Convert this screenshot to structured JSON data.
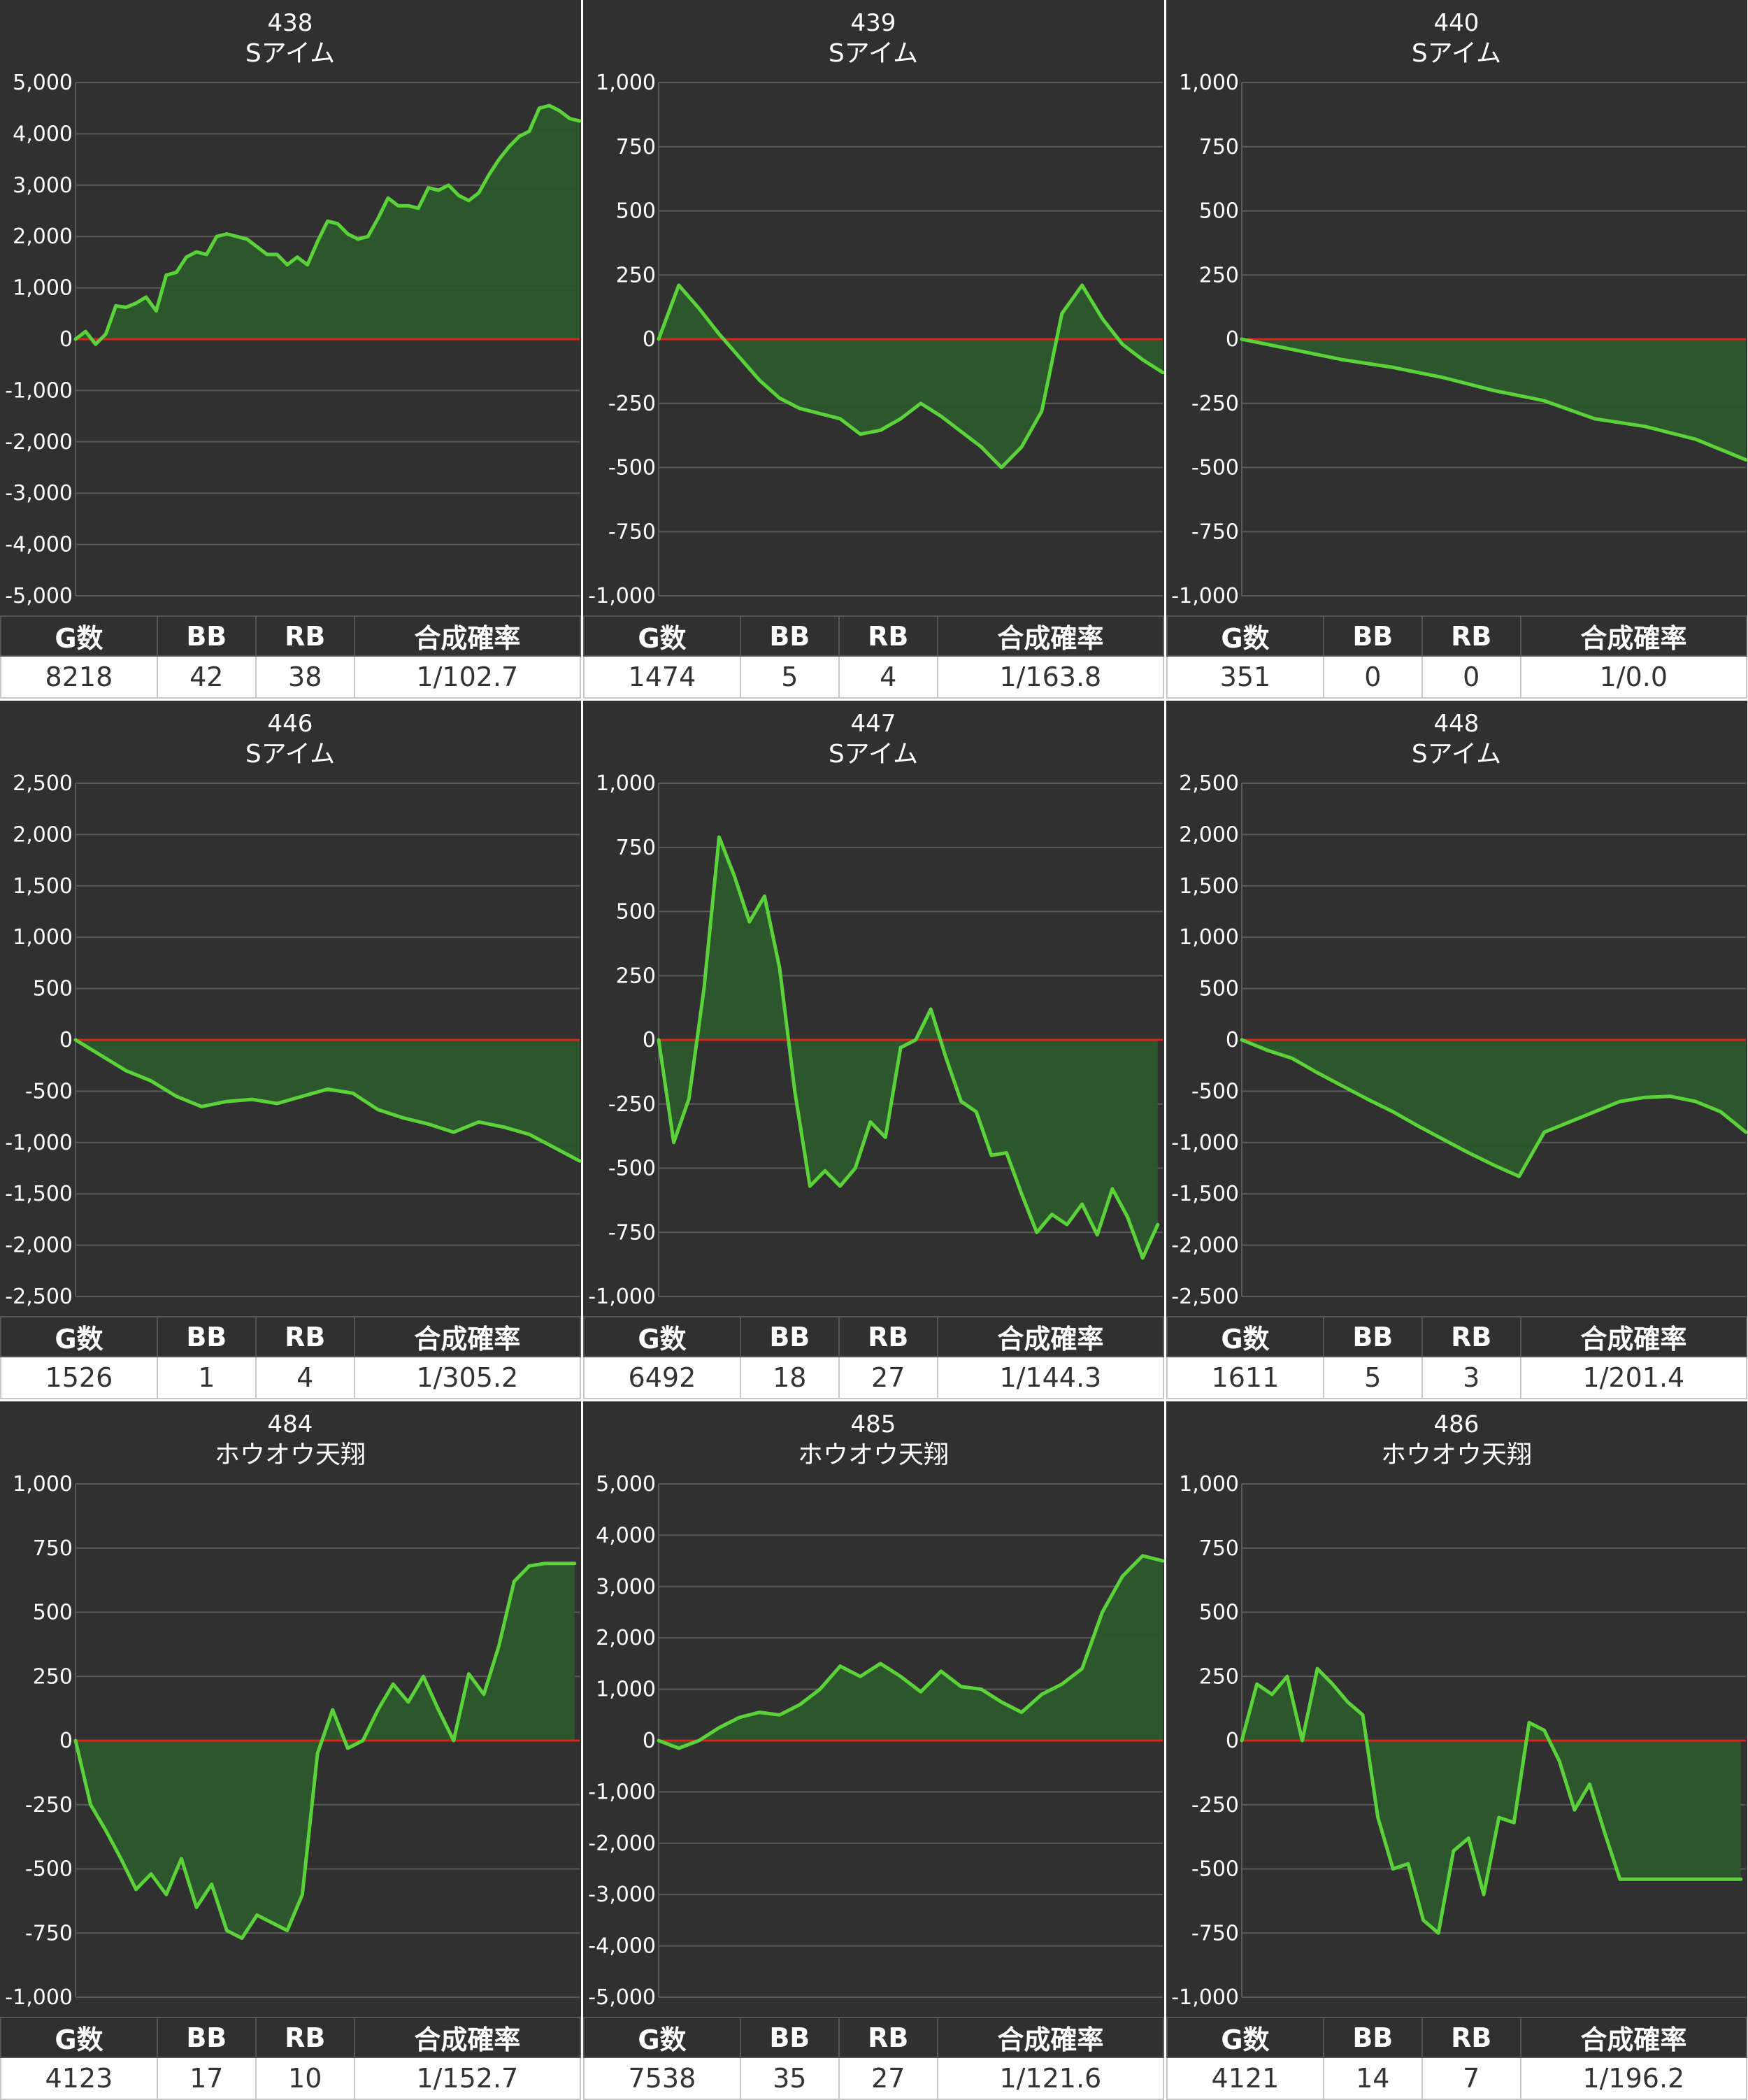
{
  "labels": {
    "g": "G数",
    "bb": "BB",
    "rb": "RB",
    "rate": "合成確率"
  },
  "colors": {
    "background": "#303030",
    "grid": "#5a5a5a",
    "zero_line": "#d9241a",
    "line": "#5bd23a",
    "fill": "#2c5a2c"
  },
  "panels": [
    {
      "number": "438",
      "machine": "Sアイム",
      "stats": {
        "g": "8218",
        "bb": "42",
        "rb": "38",
        "rate": "1/102.7"
      }
    },
    {
      "number": "439",
      "machine": "Sアイム",
      "stats": {
        "g": "1474",
        "bb": "5",
        "rb": "4",
        "rate": "1/163.8"
      }
    },
    {
      "number": "440",
      "machine": "Sアイム",
      "stats": {
        "g": "351",
        "bb": "0",
        "rb": "0",
        "rate": "1/0.0"
      }
    },
    {
      "number": "446",
      "machine": "Sアイム",
      "stats": {
        "g": "1526",
        "bb": "1",
        "rb": "4",
        "rate": "1/305.2"
      }
    },
    {
      "number": "447",
      "machine": "Sアイム",
      "stats": {
        "g": "6492",
        "bb": "18",
        "rb": "27",
        "rate": "1/144.3"
      }
    },
    {
      "number": "448",
      "machine": "Sアイム",
      "stats": {
        "g": "1611",
        "bb": "5",
        "rb": "3",
        "rate": "1/201.4"
      }
    },
    {
      "number": "484",
      "machine": "ホウオウ天翔",
      "stats": {
        "g": "4123",
        "bb": "17",
        "rb": "10",
        "rate": "1/152.7"
      }
    },
    {
      "number": "485",
      "machine": "ホウオウ天翔",
      "stats": {
        "g": "7538",
        "bb": "35",
        "rb": "27",
        "rate": "1/121.6"
      }
    },
    {
      "number": "486",
      "machine": "ホウオウ天翔",
      "stats": {
        "g": "4121",
        "bb": "14",
        "rb": "7",
        "rate": "1/196.2"
      }
    }
  ],
  "chart_data": [
    {
      "type": "area",
      "title": "438 Sアイム",
      "ylim": [
        -5000,
        5000
      ],
      "yticks": [
        "5,000",
        "4,000",
        "3,000",
        "2,000",
        "1,000",
        "0",
        "-1,000",
        "-2,000",
        "-3,000",
        "-4,000",
        "-5,000"
      ],
      "x": [
        0,
        2,
        4,
        6,
        8,
        10,
        12,
        14,
        16,
        18,
        20,
        22,
        24,
        26,
        28,
        30,
        32,
        34,
        36,
        38,
        40,
        42,
        44,
        46,
        48,
        50,
        52,
        54,
        56,
        58,
        60,
        62,
        64,
        66,
        68,
        70,
        72,
        74,
        76,
        78,
        80,
        82,
        84,
        86,
        88,
        90,
        92,
        94,
        96,
        98,
        100
      ],
      "values": [
        0,
        150,
        -100,
        100,
        650,
        620,
        700,
        820,
        550,
        1250,
        1300,
        1600,
        1700,
        1650,
        2000,
        2050,
        2000,
        1950,
        1800,
        1650,
        1650,
        1450,
        1600,
        1450,
        1900,
        2300,
        2250,
        2050,
        1950,
        2000,
        2350,
        2750,
        2600,
        2600,
        2550,
        2950,
        2900,
        3000,
        2800,
        2700,
        2850,
        3200,
        3500,
        3750,
        3950,
        4050,
        4500,
        4550,
        4450,
        4300,
        4250
      ],
      "grid": true
    },
    {
      "type": "area",
      "title": "439 Sアイム",
      "ylim": [
        -1000,
        1000
      ],
      "yticks": [
        "1,000",
        "750",
        "500",
        "250",
        "0",
        "-250",
        "-500",
        "-750",
        "-1,000"
      ],
      "x": [
        0,
        4,
        8,
        12,
        16,
        20,
        24,
        28,
        32,
        36,
        40,
        44,
        48,
        52,
        56,
        60,
        64,
        68,
        72,
        76,
        80,
        84,
        88,
        92,
        96,
        100
      ],
      "values": [
        0,
        210,
        120,
        20,
        -70,
        -160,
        -230,
        -270,
        -290,
        -310,
        -370,
        -355,
        -310,
        -250,
        -300,
        -360,
        -420,
        -500,
        -420,
        -280,
        100,
        210,
        80,
        -20,
        -80,
        -130
      ],
      "grid": true
    },
    {
      "type": "area",
      "title": "440 Sアイム",
      "ylim": [
        -1000,
        1000
      ],
      "yticks": [
        "1,000",
        "750",
        "500",
        "250",
        "0",
        "-250",
        "-500",
        "-750",
        "-1,000"
      ],
      "x": [
        0,
        10,
        20,
        30,
        40,
        50,
        60,
        70,
        80,
        90,
        100
      ],
      "values": [
        0,
        -40,
        -80,
        -110,
        -150,
        -200,
        -240,
        -310,
        -340,
        -390,
        -470
      ],
      "grid": true
    },
    {
      "type": "area",
      "title": "446 Sアイム",
      "ylim": [
        -2500,
        2500
      ],
      "yticks": [
        "2,500",
        "2,000",
        "1,500",
        "1,000",
        "500",
        "0",
        "-500",
        "-1,000",
        "-1,500",
        "-2,000",
        "-2,500"
      ],
      "x": [
        0,
        5,
        10,
        15,
        20,
        25,
        30,
        35,
        40,
        45,
        50,
        55,
        60,
        65,
        70,
        75,
        80,
        85,
        90,
        95,
        100
      ],
      "values": [
        0,
        -150,
        -300,
        -400,
        -550,
        -650,
        -600,
        -580,
        -620,
        -550,
        -480,
        -520,
        -680,
        -760,
        -820,
        -900,
        -800,
        -850,
        -920,
        -1050,
        -1180
      ],
      "grid": true
    },
    {
      "type": "area",
      "title": "447 Sアイム",
      "ylim": [
        -1000,
        1000
      ],
      "yticks": [
        "1,000",
        "750",
        "500",
        "250",
        "0",
        "-250",
        "-500",
        "-750",
        "-1,000"
      ],
      "x": [
        0,
        3,
        6,
        9,
        12,
        15,
        18,
        21,
        24,
        27,
        30,
        33,
        36,
        39,
        42,
        45,
        48,
        51,
        54,
        57,
        60,
        63,
        66,
        69,
        72,
        75,
        78,
        81,
        84,
        87,
        90,
        93,
        96,
        99
      ],
      "values": [
        0,
        -400,
        -230,
        200,
        790,
        640,
        460,
        560,
        280,
        -200,
        -570,
        -510,
        -570,
        -500,
        -320,
        -380,
        -30,
        0,
        120,
        -70,
        -240,
        -280,
        -450,
        -440,
        -600,
        -750,
        -680,
        -720,
        -640,
        -760,
        -580,
        -690,
        -850,
        -720
      ],
      "grid": true
    },
    {
      "type": "area",
      "title": "448 Sアイム",
      "ylim": [
        -2500,
        2500
      ],
      "yticks": [
        "2,500",
        "2,000",
        "1,500",
        "1,000",
        "500",
        "0",
        "-500",
        "-1,000",
        "-1,500",
        "-2,000",
        "-2,500"
      ],
      "x": [
        0,
        5,
        10,
        15,
        20,
        25,
        30,
        35,
        40,
        45,
        50,
        55,
        60,
        65,
        70,
        75,
        80,
        85,
        90,
        95,
        100
      ],
      "values": [
        0,
        -100,
        -180,
        -320,
        -450,
        -580,
        -700,
        -840,
        -970,
        -1100,
        -1220,
        -1330,
        -900,
        -800,
        -700,
        -600,
        -560,
        -550,
        -600,
        -700,
        -900
      ],
      "grid": true
    },
    {
      "type": "area",
      "title": "484 ホウオウ天翔",
      "ylim": [
        -1000,
        1000
      ],
      "yticks": [
        "1,000",
        "750",
        "500",
        "250",
        "0",
        "-250",
        "-500",
        "-750",
        "-1,000"
      ],
      "x": [
        0,
        3,
        6,
        9,
        12,
        15,
        18,
        21,
        24,
        27,
        30,
        33,
        36,
        39,
        42,
        45,
        48,
        51,
        54,
        57,
        60,
        63,
        66,
        69,
        72,
        75,
        78,
        81,
        84,
        87,
        90,
        93,
        96,
        99
      ],
      "values": [
        0,
        -250,
        -350,
        -460,
        -580,
        -520,
        -600,
        -460,
        -650,
        -560,
        -740,
        -770,
        -680,
        -710,
        -740,
        -600,
        -50,
        120,
        -30,
        0,
        120,
        220,
        150,
        250,
        120,
        0,
        260,
        180,
        370,
        620,
        680,
        690,
        690,
        690
      ],
      "grid": true
    },
    {
      "type": "area",
      "title": "485 ホウオウ天翔",
      "ylim": [
        -5000,
        5000
      ],
      "yticks": [
        "5,000",
        "4,000",
        "3,000",
        "2,000",
        "1,000",
        "0",
        "-1,000",
        "-2,000",
        "-3,000",
        "-4,000",
        "-5,000"
      ],
      "x": [
        0,
        4,
        8,
        12,
        16,
        20,
        24,
        28,
        32,
        36,
        40,
        44,
        48,
        52,
        56,
        60,
        64,
        68,
        72,
        76,
        80,
        84,
        88,
        92,
        96,
        100
      ],
      "values": [
        0,
        -150,
        0,
        250,
        450,
        550,
        500,
        700,
        1000,
        1450,
        1250,
        1500,
        1250,
        950,
        1350,
        1050,
        1000,
        750,
        550,
        900,
        1100,
        1400,
        2500,
        3200,
        3600,
        3500
      ],
      "grid": true
    },
    {
      "type": "area",
      "title": "486 ホウオウ天翔",
      "ylim": [
        -1000,
        1000
      ],
      "yticks": [
        "1,000",
        "750",
        "500",
        "250",
        "0",
        "-250",
        "-500",
        "-750",
        "-1,000"
      ],
      "x": [
        0,
        3,
        6,
        9,
        12,
        15,
        18,
        21,
        24,
        27,
        30,
        33,
        36,
        39,
        42,
        45,
        48,
        51,
        54,
        57,
        60,
        63,
        66,
        69,
        72,
        75,
        78,
        81,
        84,
        87,
        90,
        93,
        96,
        99
      ],
      "values": [
        0,
        220,
        180,
        250,
        0,
        280,
        220,
        150,
        100,
        -300,
        -500,
        -480,
        -700,
        -750,
        -430,
        -380,
        -600,
        -300,
        -320,
        70,
        40,
        -80,
        -270,
        -170,
        -360,
        -540,
        -540,
        -540,
        -540,
        -540,
        -540,
        -540,
        -540,
        -540
      ],
      "grid": true
    }
  ]
}
